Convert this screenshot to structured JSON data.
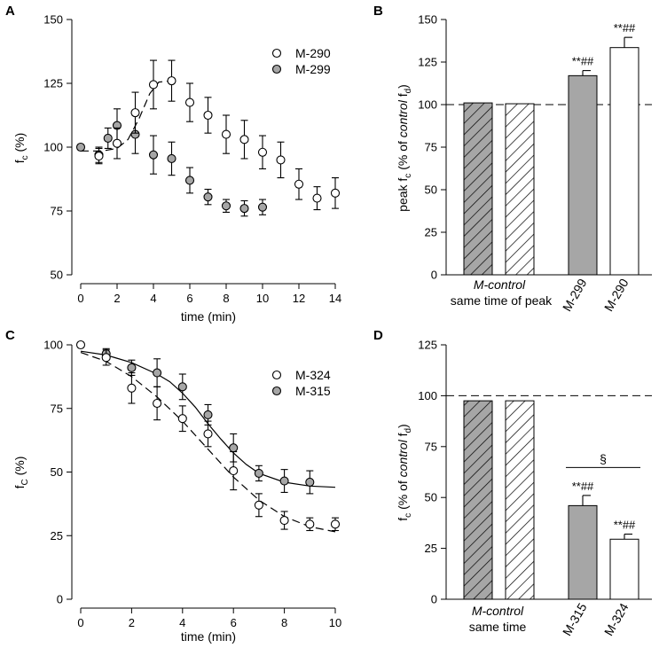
{
  "colors": {
    "gray_fill": "#a6a6a6",
    "white_fill": "#ffffff",
    "stroke": "#000000"
  },
  "chart_data": [
    {
      "panel": "A",
      "type": "scatter",
      "xlabel": "time (min)",
      "ylabel_main": "f",
      "ylabel_sub": "c",
      "ylabel_tail": " (%)",
      "xlim": [
        0,
        14
      ],
      "ylim": [
        50,
        150
      ],
      "xticks": [
        "0",
        "2",
        "4",
        "6",
        "8",
        "10",
        "12",
        "14"
      ],
      "yticks": [
        "50",
        "75",
        "100",
        "125",
        "150"
      ],
      "legend": [
        "M-290",
        "M-299"
      ],
      "series": [
        {
          "name": "M-290",
          "fill": "white",
          "x": [
            1,
            2,
            3,
            4,
            5,
            6,
            7,
            8,
            9,
            10,
            11,
            12,
            13,
            14
          ],
          "y": [
            96.5,
            101.5,
            113.5,
            124.5,
            126,
            117.5,
            112.5,
            105,
            103,
            98,
            95,
            85.5,
            80,
            82
          ],
          "err": [
            3,
            6,
            8,
            9.5,
            8,
            7.5,
            7,
            7.5,
            7.5,
            6.5,
            7,
            6,
            4.5,
            6
          ]
        },
        {
          "name": "M-299",
          "fill": "gray",
          "x": [
            0,
            1,
            1.5,
            2,
            3,
            4,
            5,
            6,
            7,
            8,
            9,
            10
          ],
          "y": [
            100,
            97,
            103.5,
            108.5,
            105,
            97,
            95.5,
            87,
            80.5,
            77,
            76,
            76.5
          ],
          "err": [
            0,
            3,
            4,
            6.5,
            7.5,
            7.5,
            6.5,
            5,
            3,
            2.5,
            3,
            3
          ]
        }
      ],
      "fit_dashed": {
        "x": [
          0,
          1.2,
          2,
          2.6,
          3.2,
          3.8,
          4.3,
          5
        ],
        "y": [
          98.5,
          98.5,
          99.5,
          103,
          111,
          121,
          125.5,
          126
        ]
      }
    },
    {
      "panel": "B",
      "type": "bar",
      "ylabel_main": "peak f",
      "ylabel_sub": "c",
      "ylabel_mid": " (% of ",
      "ylabel_italic": "control",
      "ylabel_tail_main": " f",
      "ylabel_tail_sub": "d",
      "ylabel_close": ")",
      "ylim": [
        0,
        150
      ],
      "yticks": [
        "0",
        "25",
        "50",
        "75",
        "100",
        "125",
        "150"
      ],
      "reference_line": 100,
      "bars": [
        {
          "value": 101,
          "err": 0,
          "fill": "gray-hatch",
          "star": ""
        },
        {
          "value": 100.5,
          "err": 0,
          "fill": "white-hatch",
          "star": ""
        },
        {
          "value": 117,
          "err": 3,
          "fill": "gray",
          "star": "**##"
        },
        {
          "value": 133.5,
          "err": 6,
          "fill": "white",
          "star": "**##"
        }
      ],
      "group_label_italic": "M-control",
      "group_label_plain": "same time of peak",
      "bar_labels": [
        "M-299",
        "M-290"
      ]
    },
    {
      "panel": "C",
      "type": "scatter",
      "xlabel": "time (min)",
      "ylabel_main": "f",
      "ylabel_sub": "C",
      "ylabel_tail": " (%)",
      "xlim": [
        0,
        10
      ],
      "ylim": [
        0,
        100
      ],
      "xticks": [
        "0",
        "2",
        "4",
        "6",
        "8",
        "10"
      ],
      "yticks": [
        "0",
        "25",
        "50",
        "75",
        "100"
      ],
      "legend": [
        "M-324",
        "M-315"
      ],
      "series": [
        {
          "name": "M-324",
          "fill": "white",
          "x": [
            0,
            1,
            2,
            3,
            4,
            5,
            6,
            7,
            8,
            9,
            10
          ],
          "y": [
            100,
            95,
            83,
            77,
            71,
            65,
            50.5,
            37,
            31,
            29.5,
            29.5
          ],
          "err": [
            0,
            3,
            6,
            6.5,
            5,
            5,
            7.5,
            4.5,
            3.5,
            2.5,
            2.5
          ]
        },
        {
          "name": "M-315",
          "fill": "gray",
          "x": [
            1,
            2,
            3,
            4,
            5,
            6,
            7,
            8,
            9
          ],
          "y": [
            96.5,
            91,
            89,
            83.5,
            72.5,
            59.5,
            49.5,
            46.5,
            46
          ],
          "err": [
            2,
            3,
            5.5,
            5,
            4,
            5.5,
            3,
            4.5,
            4.5
          ]
        }
      ],
      "fit_solid": {
        "x": [
          0,
          1,
          2,
          3,
          3.5,
          4,
          4.5,
          5,
          5.5,
          6,
          6.5,
          7,
          8,
          9,
          10
        ],
        "y": [
          97.5,
          96,
          93,
          88.5,
          85.5,
          81,
          75.5,
          69,
          63,
          57.5,
          53,
          49.5,
          46,
          44.5,
          44
        ]
      },
      "fit_dashed": {
        "x": [
          0,
          1,
          2,
          3,
          4,
          5,
          6,
          7,
          8,
          9,
          10
        ],
        "y": [
          97,
          93.5,
          87.5,
          79.5,
          70,
          59,
          48,
          39,
          32.5,
          28.5,
          26.5
        ]
      }
    },
    {
      "panel": "D",
      "type": "bar",
      "ylabel_main": "f",
      "ylabel_sub": "c",
      "ylabel_mid": " (% of ",
      "ylabel_italic": "control",
      "ylabel_tail_main": " f",
      "ylabel_tail_sub": "d",
      "ylabel_close": ")",
      "ylim": [
        0,
        125
      ],
      "yticks": [
        "0",
        "25",
        "50",
        "75",
        "100",
        "125"
      ],
      "reference_line": 100,
      "bars": [
        {
          "value": 97.5,
          "err": 0,
          "fill": "gray-hatch",
          "star": ""
        },
        {
          "value": 97.5,
          "err": 0,
          "fill": "white-hatch",
          "star": ""
        },
        {
          "value": 46,
          "err": 5,
          "fill": "gray",
          "star": "**##"
        },
        {
          "value": 29.5,
          "err": 2.5,
          "fill": "white",
          "star": "**##"
        }
      ],
      "significance": "§",
      "group_label_italic": "M-control",
      "group_label_plain": "same time",
      "bar_labels": [
        "M-315",
        "M-324"
      ]
    }
  ]
}
